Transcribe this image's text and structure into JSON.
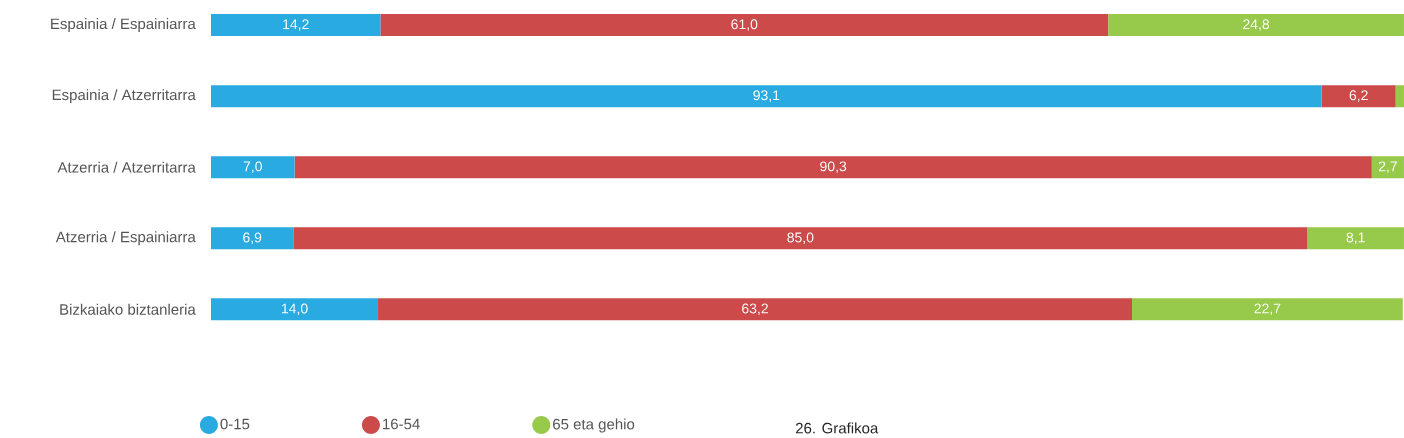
{
  "chart_data": {
    "type": "bar",
    "orientation": "horizontal",
    "stacked": true,
    "tick_labels": "y",
    "legend": "bottom",
    "categories": [
      "Espainia / Espainiarra",
      "Espainia / Atzerritarra",
      "Atzerria / Atzerritarra",
      "Atzerria / Espainiarra",
      "Bizkaiako biztanleria"
    ],
    "series": [
      {
        "name": "0-15",
        "color": "#29abe2",
        "values": [
          14.2,
          93.1,
          7.0,
          6.9,
          14.0
        ],
        "value_labels": [
          "14,2",
          "93,1",
          "7,0",
          "6,9",
          "14,0"
        ]
      },
      {
        "name": "16-54",
        "color": "#cc4a4a",
        "values": [
          61.0,
          6.2,
          90.3,
          85.0,
          63.2
        ],
        "value_labels": [
          "61,0",
          "6,2",
          "90,3",
          "85,0",
          "63,2"
        ]
      },
      {
        "name": "65 eta gehio",
        "color": "#97c94a",
        "values": [
          24.8,
          0.7,
          2.7,
          8.1,
          22.7
        ],
        "value_labels": [
          "24,8",
          null,
          "2,7",
          "8,1",
          "22,7"
        ]
      }
    ],
    "annotations": [
      "26. Grafikoa"
    ]
  }
}
